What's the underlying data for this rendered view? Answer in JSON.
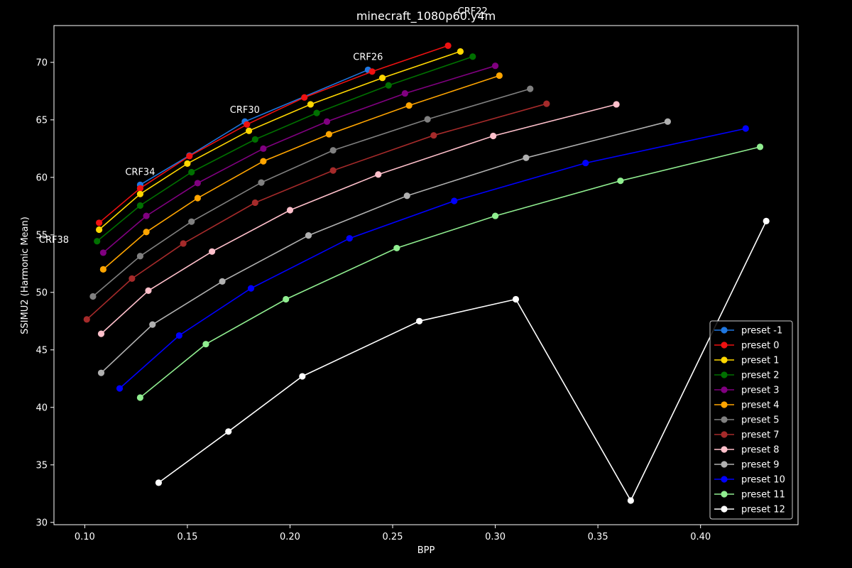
{
  "chart_data": {
    "type": "line",
    "title": "minecraft_1080p60.y4m",
    "xlabel": "BPP",
    "ylabel": "SSIMU2 (Harmonic Mean)",
    "xlim": [
      0.085,
      0.4475
    ],
    "ylim": [
      29.8,
      73.2
    ],
    "xticks": [
      0.1,
      0.15,
      0.2,
      0.25,
      0.3,
      0.35,
      0.4
    ],
    "xtick_labels": [
      "0.10",
      "0.15",
      "0.20",
      "0.25",
      "0.30",
      "0.35",
      "0.40"
    ],
    "yticks": [
      30,
      35,
      40,
      45,
      50,
      55,
      60,
      65,
      70
    ],
    "ytick_labels": [
      "30",
      "35",
      "40",
      "45",
      "50",
      "55",
      "60",
      "65",
      "70"
    ],
    "grid": false,
    "legend_position": "lower-right",
    "series": [
      {
        "name": "preset -1",
        "color": "#1f77e0",
        "points": [
          [
            0.127,
            59.35
          ],
          [
            0.151,
            61.9
          ],
          [
            0.178,
            64.85
          ],
          [
            0.238,
            69.35
          ]
        ]
      },
      {
        "name": "preset 0",
        "color": "#ee1111",
        "points": [
          [
            0.107,
            56.05
          ],
          [
            0.127,
            59.05
          ],
          [
            0.151,
            61.85
          ],
          [
            0.179,
            64.6
          ],
          [
            0.207,
            66.95
          ],
          [
            0.24,
            69.2
          ],
          [
            0.277,
            71.45
          ]
        ]
      },
      {
        "name": "preset 1",
        "color": "#ffd700",
        "points": [
          [
            0.107,
            55.45
          ],
          [
            0.127,
            58.55
          ],
          [
            0.15,
            61.2
          ],
          [
            0.18,
            64.05
          ],
          [
            0.21,
            66.35
          ],
          [
            0.245,
            68.65
          ],
          [
            0.283,
            70.95
          ]
        ]
      },
      {
        "name": "preset 2",
        "color": "#007000",
        "points": [
          [
            0.106,
            54.45
          ],
          [
            0.127,
            57.55
          ],
          [
            0.152,
            60.45
          ],
          [
            0.183,
            63.3
          ],
          [
            0.213,
            65.6
          ],
          [
            0.248,
            68.0
          ],
          [
            0.289,
            70.5
          ]
        ]
      },
      {
        "name": "preset 3",
        "color": "#800080",
        "points": [
          [
            0.109,
            53.45
          ],
          [
            0.13,
            56.65
          ],
          [
            0.155,
            59.5
          ],
          [
            0.187,
            62.5
          ],
          [
            0.218,
            64.85
          ],
          [
            0.256,
            67.3
          ],
          [
            0.3,
            69.7
          ]
        ]
      },
      {
        "name": "preset 4",
        "color": "#ffa500",
        "points": [
          [
            0.109,
            52.0
          ],
          [
            0.13,
            55.25
          ],
          [
            0.155,
            58.2
          ],
          [
            0.187,
            61.4
          ],
          [
            0.219,
            63.75
          ],
          [
            0.258,
            66.25
          ],
          [
            0.302,
            68.85
          ]
        ]
      },
      {
        "name": "preset 5",
        "color": "#808080",
        "points": [
          [
            0.104,
            49.65
          ],
          [
            0.127,
            53.15
          ],
          [
            0.152,
            56.15
          ],
          [
            0.186,
            59.55
          ],
          [
            0.221,
            62.35
          ],
          [
            0.267,
            65.05
          ],
          [
            0.317,
            67.7
          ]
        ]
      },
      {
        "name": "preset 7",
        "color": "#a52a2a",
        "points": [
          [
            0.101,
            47.65
          ],
          [
            0.123,
            51.2
          ],
          [
            0.148,
            54.25
          ],
          [
            0.183,
            57.8
          ],
          [
            0.221,
            60.6
          ],
          [
            0.27,
            63.65
          ],
          [
            0.325,
            66.4
          ]
        ]
      },
      {
        "name": "preset 8",
        "color": "#ffc0cb",
        "points": [
          [
            0.108,
            46.4
          ],
          [
            0.131,
            50.15
          ],
          [
            0.162,
            53.55
          ],
          [
            0.2,
            57.15
          ],
          [
            0.243,
            60.25
          ],
          [
            0.299,
            63.6
          ],
          [
            0.359,
            66.35
          ]
        ]
      },
      {
        "name": "preset 9",
        "color": "#b0b0b0",
        "points": [
          [
            0.108,
            43.0
          ],
          [
            0.133,
            47.2
          ],
          [
            0.167,
            50.95
          ],
          [
            0.209,
            54.95
          ],
          [
            0.257,
            58.4
          ],
          [
            0.315,
            61.7
          ],
          [
            0.384,
            64.85
          ]
        ]
      },
      {
        "name": "preset 10",
        "color": "#0000ff",
        "points": [
          [
            0.117,
            41.65
          ],
          [
            0.146,
            46.25
          ],
          [
            0.181,
            50.35
          ],
          [
            0.229,
            54.7
          ],
          [
            0.28,
            57.95
          ],
          [
            0.344,
            61.25
          ],
          [
            0.422,
            64.25
          ]
        ]
      },
      {
        "name": "preset 11",
        "color": "#90ee90",
        "points": [
          [
            0.127,
            40.85
          ],
          [
            0.159,
            45.5
          ],
          [
            0.198,
            49.4
          ],
          [
            0.252,
            53.85
          ],
          [
            0.3,
            56.65
          ],
          [
            0.361,
            59.7
          ],
          [
            0.429,
            62.65
          ]
        ]
      },
      {
        "name": "preset 12",
        "color": "#ffffff",
        "points": [
          [
            0.136,
            33.45
          ],
          [
            0.17,
            37.9
          ],
          [
            0.206,
            42.7
          ],
          [
            0.263,
            47.5
          ],
          [
            0.31,
            49.4
          ],
          [
            0.366,
            31.9
          ],
          [
            0.432,
            56.2
          ]
        ]
      }
    ],
    "annotations": [
      {
        "text": "CRF38",
        "x": 0.085,
        "y": 54.3
      },
      {
        "text": "CRF34",
        "x": 0.127,
        "y": 60.2
      },
      {
        "text": "CRF30",
        "x": 0.178,
        "y": 65.6
      },
      {
        "text": "CRF26",
        "x": 0.238,
        "y": 70.2
      },
      {
        "text": "CRF22",
        "x": 0.289,
        "y": 74.2
      }
    ]
  }
}
